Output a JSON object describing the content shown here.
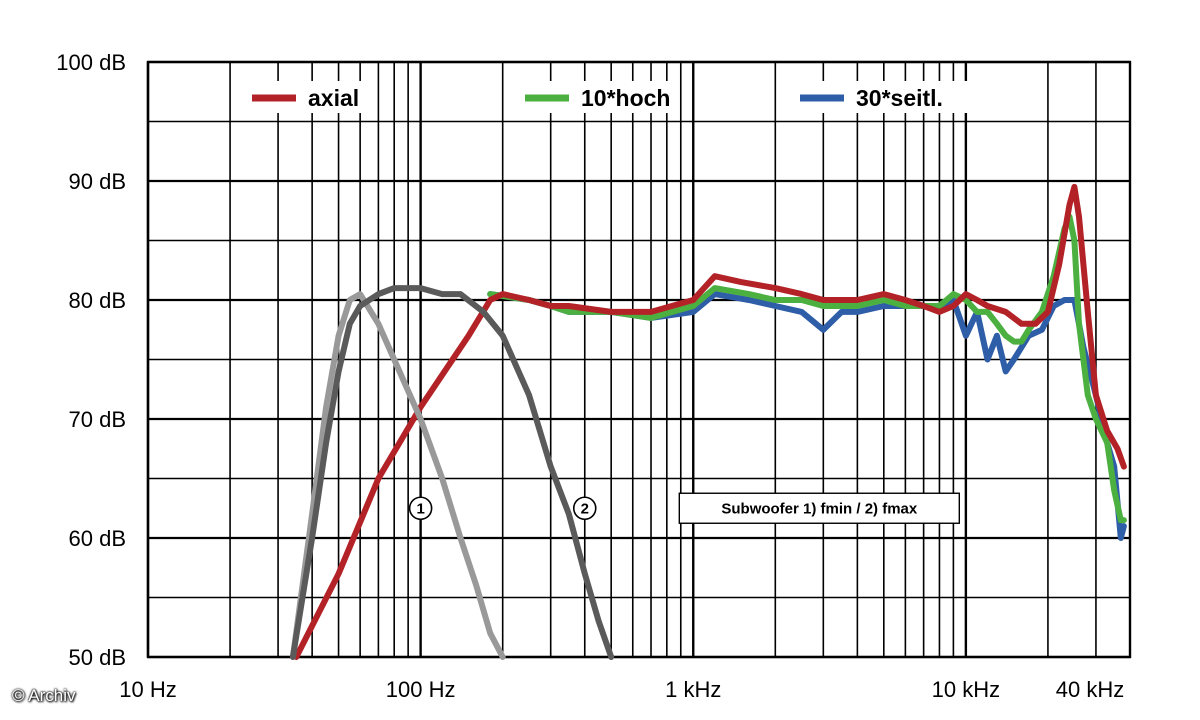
{
  "credit": "© Archiv",
  "chart_data": {
    "type": "line",
    "title": "",
    "xlabel": "",
    "ylabel": "",
    "x_scale": "log",
    "xlim": [
      10,
      40000
    ],
    "ylim": [
      50,
      100
    ],
    "grid": true,
    "y_ticks": [
      {
        "value": 100,
        "label": "100 dB"
      },
      {
        "value": 90,
        "label": "90 dB"
      },
      {
        "value": 80,
        "label": "80 dB"
      },
      {
        "value": 70,
        "label": "70 dB"
      },
      {
        "value": 60,
        "label": "60 dB"
      },
      {
        "value": 50,
        "label": "50 dB"
      }
    ],
    "x_ticks": [
      {
        "value": 10,
        "label": "10 Hz"
      },
      {
        "value": 100,
        "label": "100 Hz"
      },
      {
        "value": 1000,
        "label": "1 kHz"
      },
      {
        "value": 10000,
        "label": "10 kHz"
      },
      {
        "value": 40000,
        "label": "40 kHz"
      }
    ],
    "legend": {
      "placement": "top"
    },
    "series": [
      {
        "name": "30*seitl.",
        "color": "#2f5ea8",
        "x": [
          180,
          250,
          300,
          350,
          500,
          700,
          1000,
          1200,
          1600,
          2000,
          2500,
          3000,
          3500,
          4000,
          5000,
          6000,
          7000,
          8000,
          9000,
          10000,
          11000,
          12000,
          13000,
          14000,
          15000,
          17000,
          19000,
          21000,
          23000,
          25000,
          27000,
          30000,
          33000,
          35000,
          36000,
          37000,
          38000
        ],
        "y": [
          80.5,
          80.0,
          79.5,
          79.0,
          79.0,
          78.5,
          79.0,
          80.5,
          80.0,
          79.5,
          79.0,
          77.5,
          79.0,
          79.0,
          79.5,
          79.5,
          79.5,
          79.5,
          80.0,
          77.0,
          79.0,
          75.0,
          77.0,
          74.0,
          75.0,
          77.0,
          77.5,
          79.5,
          80.0,
          80.0,
          76.0,
          72.0,
          68.0,
          66.0,
          63.0,
          60.0,
          61.0
        ]
      },
      {
        "name": "10*hoch",
        "color": "#4cb040",
        "x": [
          180,
          250,
          300,
          350,
          500,
          700,
          1000,
          1200,
          1600,
          2000,
          2500,
          3000,
          4000,
          5000,
          6000,
          7000,
          8000,
          9000,
          10000,
          11000,
          12000,
          13000,
          14000,
          15000,
          16000,
          17000,
          19000,
          21000,
          23000,
          24000,
          25000,
          26000,
          28000,
          30000,
          33000,
          35000,
          37000,
          38000
        ],
        "y": [
          80.5,
          80.0,
          79.5,
          79.0,
          79.0,
          78.5,
          79.5,
          81.0,
          80.5,
          80.0,
          80.0,
          79.5,
          79.5,
          80.0,
          79.5,
          79.5,
          79.5,
          80.5,
          80.0,
          79.0,
          79.0,
          78.0,
          77.0,
          76.5,
          76.5,
          77.5,
          79.0,
          82.0,
          86.0,
          87.0,
          85.0,
          78.0,
          72.0,
          70.0,
          68.0,
          64.0,
          61.5,
          61.5
        ]
      },
      {
        "name": "axial",
        "color": "#b32227",
        "x": [
          35,
          50,
          70,
          100,
          150,
          180,
          200,
          250,
          300,
          350,
          500,
          700,
          1000,
          1200,
          1500,
          2000,
          2500,
          3000,
          4000,
          5000,
          6000,
          7000,
          8000,
          9000,
          10000,
          11000,
          12000,
          14000,
          16000,
          18000,
          20000,
          22000,
          24000,
          25000,
          26000,
          28000,
          30000,
          33000,
          36000,
          38000
        ],
        "y": [
          50,
          57,
          65,
          71,
          77,
          80,
          80.5,
          80.0,
          79.5,
          79.5,
          79.0,
          79.0,
          80.0,
          82.0,
          81.5,
          81.0,
          80.5,
          80.0,
          80.0,
          80.5,
          80.0,
          79.5,
          79.0,
          79.5,
          80.5,
          80.0,
          79.5,
          79.0,
          78.0,
          78.0,
          79.0,
          83.0,
          88.0,
          89.5,
          87.0,
          79.0,
          72.0,
          69.0,
          67.5,
          66.0
        ]
      },
      {
        "name": "1",
        "color": "#999999",
        "x": [
          34,
          40,
          45,
          50,
          55,
          60,
          70,
          80,
          100,
          120,
          140,
          160,
          180,
          200
        ],
        "y": [
          50,
          62,
          71,
          77,
          80,
          80.5,
          78,
          75,
          70,
          65,
          60,
          56,
          52,
          50
        ]
      },
      {
        "name": "2",
        "color": "#5a5a5a",
        "x": [
          34,
          40,
          45,
          50,
          55,
          60,
          70,
          80,
          100,
          120,
          140,
          170,
          200,
          250,
          300,
          350,
          400,
          450,
          500
        ],
        "y": [
          50,
          60,
          68,
          74,
          78,
          79.5,
          80.5,
          81,
          81,
          80.5,
          80.5,
          79,
          77,
          72,
          66,
          62,
          57,
          53,
          50
        ]
      }
    ],
    "annotations": [
      {
        "text": "1",
        "x": 100,
        "y": 62.5
      },
      {
        "text": "2",
        "x": 400,
        "y": 62.5
      },
      {
        "text": "Subwoofer 1) fmin / 2) fmax",
        "x": 2900,
        "y": 62.5
      }
    ]
  }
}
